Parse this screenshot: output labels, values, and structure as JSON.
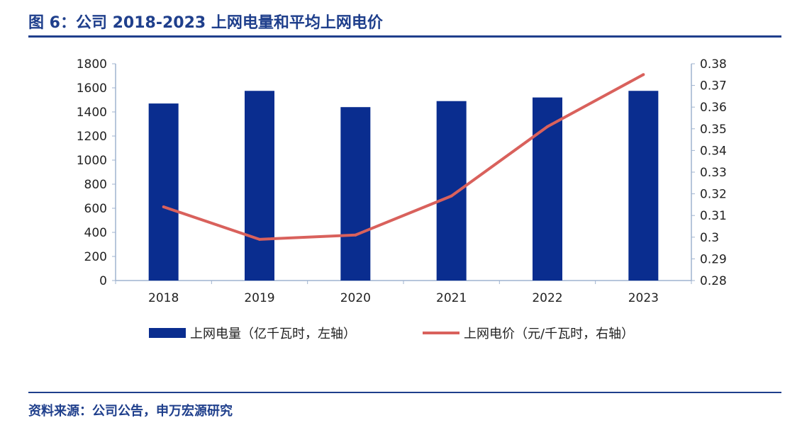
{
  "header": {
    "title": "图 6：公司 2018-2023 上网电量和平均上网电价"
  },
  "footer": {
    "source": "资料来源：公司公告，申万宏源研究"
  },
  "colors": {
    "bar": "#0a2d8f",
    "line": "#d9615c",
    "title": "#1f3f8c",
    "axis": "#9fb3cf"
  },
  "chart_data": {
    "type": "bar+line",
    "categories": [
      "2018",
      "2019",
      "2020",
      "2021",
      "2022",
      "2023"
    ],
    "series": [
      {
        "name": "上网电量（亿千瓦时，左轴）",
        "type": "bar",
        "axis": "left",
        "values": [
          1470,
          1575,
          1440,
          1490,
          1520,
          1575
        ]
      },
      {
        "name": "上网电价（元/千瓦时，右轴）",
        "type": "line",
        "axis": "right",
        "values": [
          0.314,
          0.299,
          0.301,
          0.319,
          0.351,
          0.375
        ]
      }
    ],
    "y_left": {
      "min": 0,
      "max": 1800,
      "ticks": [
        0,
        200,
        400,
        600,
        800,
        1000,
        1200,
        1400,
        1600,
        1800
      ],
      "tick_labels": [
        "0",
        "200",
        "400",
        "600",
        "800",
        "1000",
        "1200",
        "1400",
        "1600",
        "1800"
      ]
    },
    "y_right": {
      "min": 0.28,
      "max": 0.38,
      "ticks": [
        0.28,
        0.29,
        0.3,
        0.31,
        0.32,
        0.33,
        0.34,
        0.35,
        0.36,
        0.37,
        0.38
      ],
      "tick_labels": [
        "0.28",
        "0.29",
        "0.3",
        "0.31",
        "0.32",
        "0.33",
        "0.34",
        "0.35",
        "0.36",
        "0.37",
        "0.38"
      ]
    },
    "legend": "bottom",
    "grid": false
  }
}
